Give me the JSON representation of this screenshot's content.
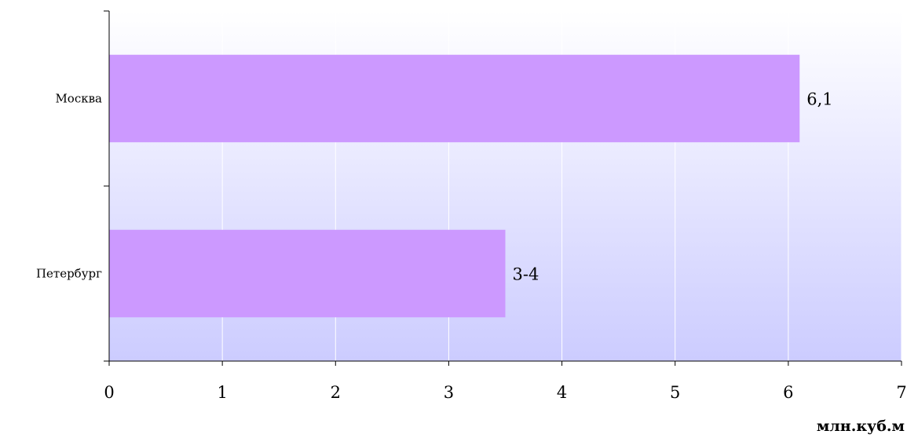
{
  "chart_data": {
    "type": "bar",
    "orientation": "horizontal",
    "categories": [
      "Москва",
      "Петербург"
    ],
    "values": [
      6.1,
      3.5
    ],
    "data_labels": [
      "6,1",
      "3-4"
    ],
    "xlabel": "млн.куб.м",
    "xlim": [
      0,
      7
    ],
    "xticks": [
      0,
      1,
      2,
      3,
      4,
      5,
      6,
      7
    ],
    "grid": "vertical",
    "legend": "none",
    "colors": {
      "bar": "#cc99ff",
      "plot_bg_top": "#ffffff",
      "plot_bg_bottom": "#ccccff",
      "grid": "#ffffff",
      "axis": "#000000"
    }
  }
}
